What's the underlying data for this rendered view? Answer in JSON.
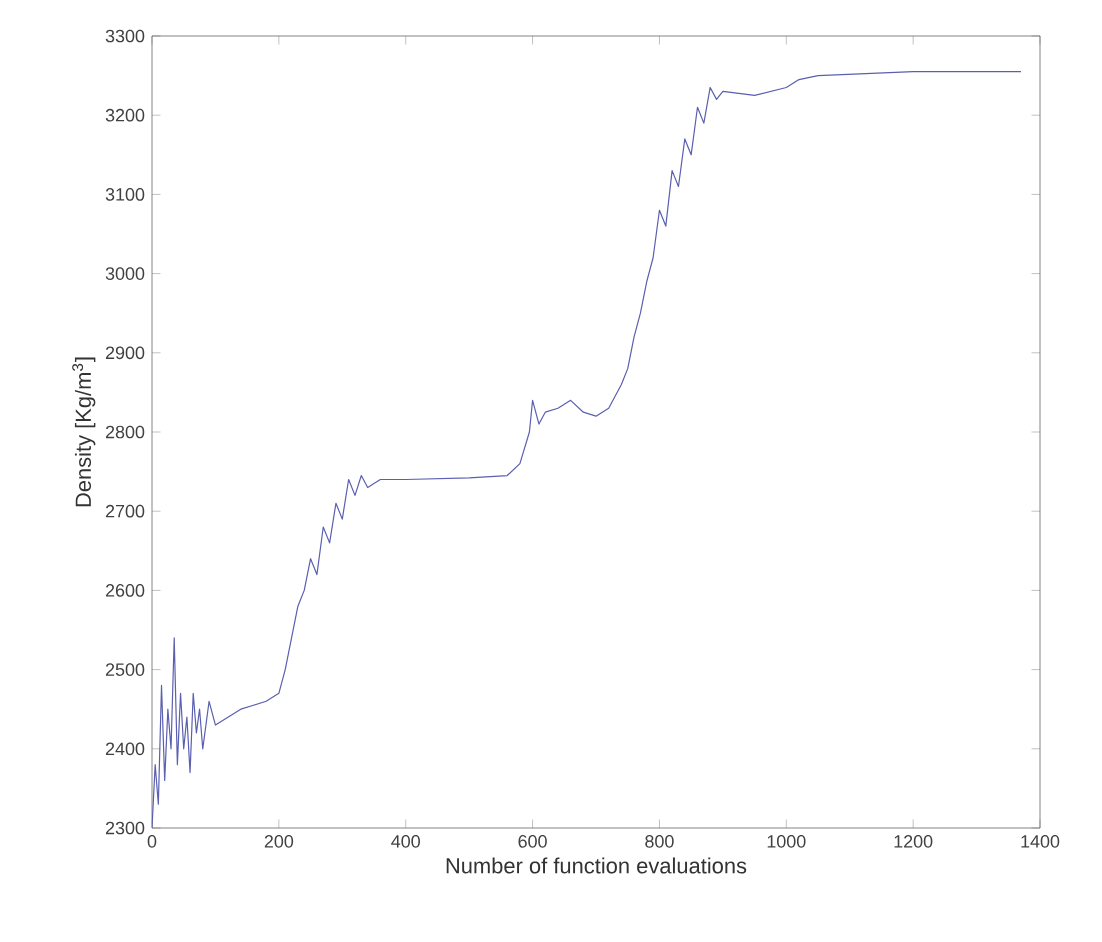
{
  "chart_data": {
    "type": "line",
    "xlabel": "Number of function evaluations",
    "ylabel": "Density [Kg/m$^{3}$]",
    "xlim": [
      0,
      1400
    ],
    "xticks": [
      0,
      200,
      400,
      600,
      800,
      1000,
      1200,
      1400
    ],
    "ylim": [
      2300,
      3300
    ],
    "yticks": [
      2300,
      2400,
      2500,
      2600,
      2700,
      2800,
      2900,
      3000,
      3100,
      3200,
      3300
    ],
    "grid": false,
    "marker": "none",
    "line_style": "solid",
    "series": [
      {
        "color": "#5a5fb0",
        "x": [
          0,
          5,
          10,
          15,
          20,
          25,
          30,
          35,
          40,
          45,
          50,
          55,
          60,
          65,
          70,
          75,
          80,
          90,
          100,
          120,
          140,
          160,
          180,
          200,
          210,
          220,
          230,
          240,
          250,
          260,
          270,
          280,
          290,
          300,
          310,
          320,
          330,
          340,
          360,
          400,
          500,
          560,
          580,
          595,
          600,
          610,
          620,
          640,
          660,
          680,
          700,
          720,
          740,
          750,
          760,
          770,
          780,
          790,
          800,
          810,
          820,
          830,
          840,
          850,
          860,
          870,
          880,
          890,
          900,
          950,
          1000,
          1020,
          1050,
          1200,
          1370
        ],
        "values": [
          2300,
          2380,
          2330,
          2480,
          2360,
          2450,
          2400,
          2540,
          2380,
          2470,
          2400,
          2440,
          2370,
          2470,
          2420,
          2450,
          2400,
          2460,
          2430,
          2440,
          2450,
          2455,
          2460,
          2470,
          2500,
          2540,
          2580,
          2600,
          2640,
          2620,
          2680,
          2660,
          2710,
          2690,
          2740,
          2720,
          2745,
          2730,
          2740,
          2740,
          2742,
          2745,
          2760,
          2800,
          2840,
          2810,
          2825,
          2830,
          2840,
          2825,
          2820,
          2830,
          2860,
          2880,
          2920,
          2950,
          2990,
          3020,
          3080,
          3060,
          3130,
          3110,
          3170,
          3150,
          3210,
          3190,
          3235,
          3220,
          3230,
          3225,
          3235,
          3245,
          3250,
          3255,
          3255
        ]
      }
    ]
  }
}
